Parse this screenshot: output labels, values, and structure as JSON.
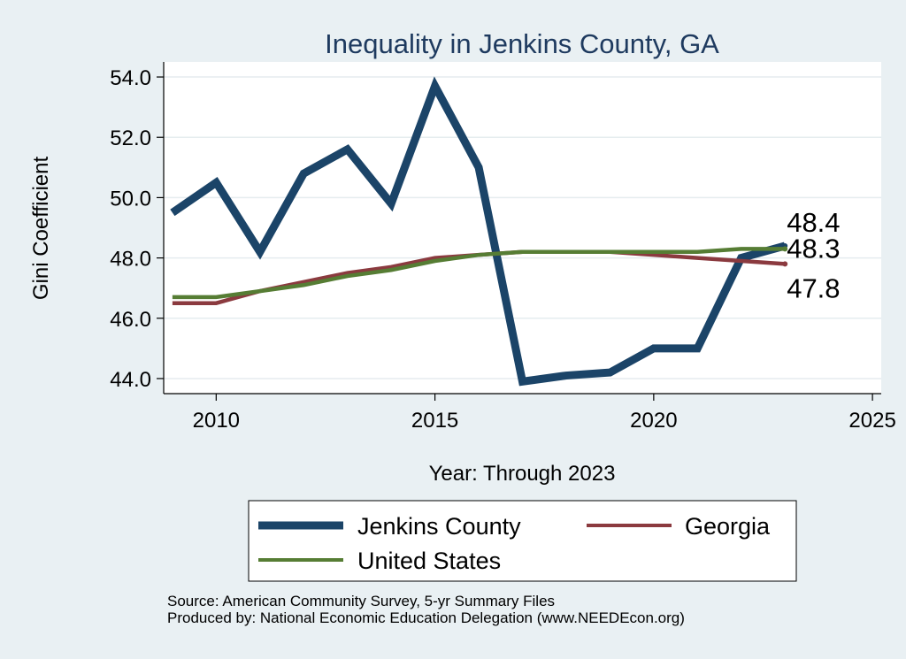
{
  "chart_data": {
    "type": "line",
    "title": "Inequality in Jenkins County, GA",
    "xlabel": "Year: Through 2023",
    "ylabel": "Gini Coefficient",
    "xlim": [
      2008.8,
      2025.2
    ],
    "ylim": [
      43.5,
      54.5
    ],
    "xticks": [
      2010,
      2015,
      2020,
      2025
    ],
    "yticks": [
      44.0,
      46.0,
      48.0,
      50.0,
      52.0,
      54.0
    ],
    "x": [
      2009,
      2010,
      2011,
      2012,
      2013,
      2014,
      2015,
      2016,
      2017,
      2018,
      2019,
      2020,
      2021,
      2022,
      2023
    ],
    "series": [
      {
        "name": "Jenkins County",
        "color": "#1b4468",
        "values": [
          49.5,
          50.5,
          48.2,
          50.8,
          51.6,
          49.8,
          53.7,
          51.0,
          43.9,
          44.1,
          44.2,
          45.0,
          45.0,
          48.0,
          48.4
        ],
        "end_label": "48.4"
      },
      {
        "name": "Georgia",
        "color": "#8b3a3f",
        "values": [
          46.5,
          46.5,
          46.9,
          47.2,
          47.5,
          47.7,
          48.0,
          48.1,
          48.2,
          48.2,
          48.2,
          48.1,
          48.0,
          47.9,
          47.8
        ],
        "end_label": "47.8"
      },
      {
        "name": "United States",
        "color": "#567d34",
        "values": [
          46.7,
          46.7,
          46.9,
          47.1,
          47.4,
          47.6,
          47.9,
          48.1,
          48.2,
          48.2,
          48.2,
          48.2,
          48.2,
          48.3,
          48.3
        ],
        "end_label": "48.3"
      }
    ],
    "legend": {
      "position": "bottom",
      "entries": [
        "Jenkins County",
        "Georgia",
        "United States"
      ]
    }
  },
  "source": {
    "line1": "Source: American Community Survey, 5-yr Summary Files",
    "line2": "Produced by: National Economic Education Delegation (www.NEEDEcon.org)"
  }
}
